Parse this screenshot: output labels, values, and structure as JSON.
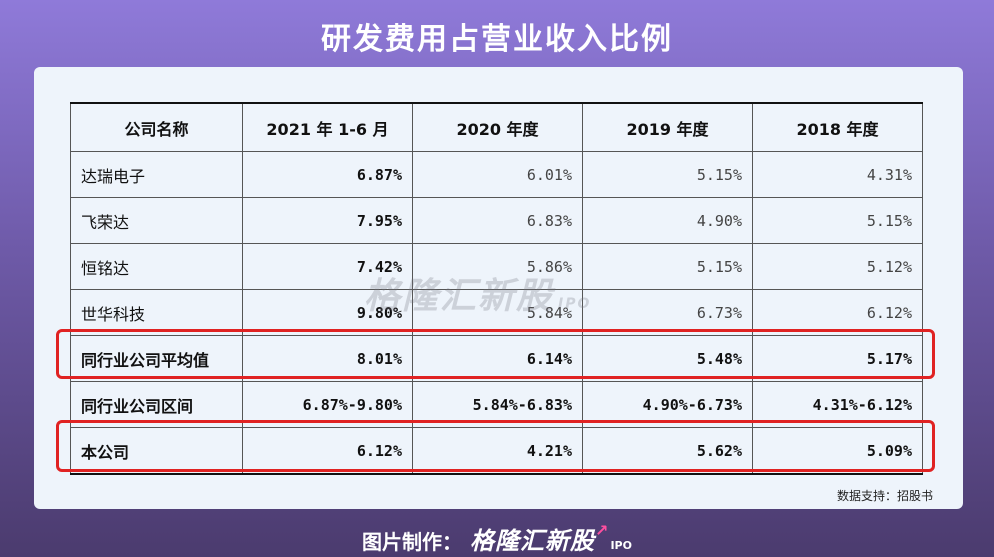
{
  "title": "研发费用占营业收入比例",
  "chart_data": {
    "type": "table",
    "columns": [
      "公司名称",
      "2021 年 1-6 月",
      "2020 年度",
      "2019 年度",
      "2018 年度"
    ],
    "rows": [
      {
        "name": "达瑞电子",
        "values": [
          "6.87%",
          "6.01%",
          "5.15%",
          "4.31%"
        ]
      },
      {
        "name": "飞荣达",
        "values": [
          "7.95%",
          "6.83%",
          "4.90%",
          "5.15%"
        ]
      },
      {
        "name": "恒铭达",
        "values": [
          "7.42%",
          "5.86%",
          "5.15%",
          "5.12%"
        ]
      },
      {
        "name": "世华科技",
        "values": [
          "9.80%",
          "5.84%",
          "6.73%",
          "6.12%"
        ]
      },
      {
        "name": "同行业公司平均值",
        "values": [
          "8.01%",
          "6.14%",
          "5.48%",
          "5.17%"
        ]
      },
      {
        "name": "同行业公司区间",
        "values": [
          "6.87%-9.80%",
          "5.84%-6.83%",
          "4.90%-6.73%",
          "4.31%-6.12%"
        ]
      },
      {
        "name": "本公司",
        "values": [
          "6.12%",
          "4.21%",
          "5.62%",
          "5.09%"
        ]
      }
    ],
    "highlighted_rows": [
      "同行业公司平均值",
      "本公司"
    ],
    "highlight_color": "#e02222"
  },
  "watermark": {
    "text": "格隆汇新股",
    "ipo": "IPO"
  },
  "source": "数据支持：招股书",
  "footer": {
    "label": "图片制作：",
    "brand": "格隆汇新股",
    "ipo": "IPO"
  }
}
